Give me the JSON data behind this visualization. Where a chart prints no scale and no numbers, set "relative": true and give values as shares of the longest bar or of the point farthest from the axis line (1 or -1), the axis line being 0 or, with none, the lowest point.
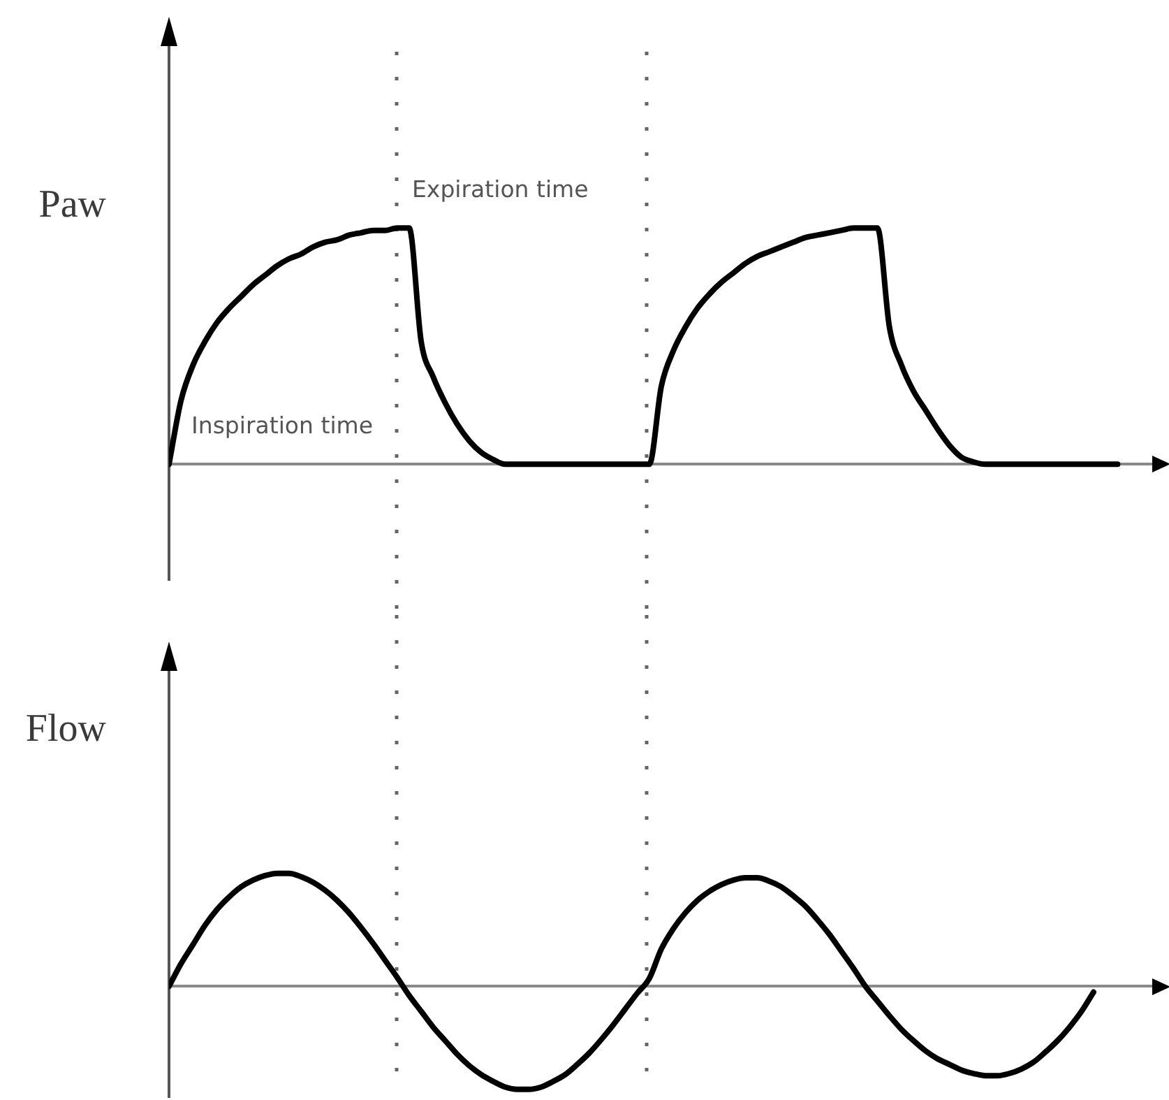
{
  "chart_data": [
    {
      "type": "line",
      "ylabel": "Paw",
      "relative": true,
      "marker": "none",
      "categories": [
        null,
        null,
        null,
        null,
        null,
        null,
        null,
        null,
        null,
        null,
        null,
        null,
        null,
        null,
        null,
        null,
        null,
        null,
        null,
        null,
        null,
        null,
        null,
        null,
        null,
        null,
        null,
        null,
        null,
        null,
        null,
        null,
        null,
        null,
        null,
        null,
        null,
        null,
        null,
        null,
        null,
        null,
        null,
        null,
        null,
        null,
        null,
        null,
        null,
        null,
        null,
        null,
        null,
        null,
        null,
        null,
        null,
        null,
        null,
        null,
        null,
        null,
        null,
        null,
        null,
        null,
        null,
        null,
        null,
        null,
        null,
        null,
        null,
        null,
        null,
        null,
        null,
        null,
        null,
        null
      ],
      "series": [
        {
          "color": "#000000",
          "values": [
            0,
            0.27,
            0.42,
            0.52,
            0.6,
            0.66,
            0.71,
            0.76,
            0.8,
            0.84,
            0.87,
            0.89,
            0.92,
            0.94,
            0.95,
            0.97,
            0.98,
            0.99,
            0.99,
            1,
            1,
            0.52,
            0.37,
            0.26,
            0.17,
            0.1,
            0.05,
            0.02,
            0,
            0,
            0,
            0,
            0,
            0,
            0,
            0,
            0,
            0,
            0,
            0,
            0,
            0.33,
            0.48,
            0.58,
            0.66,
            0.72,
            0.77,
            0.81,
            0.85,
            0.88,
            0.9,
            0.92,
            0.94,
            0.96,
            0.97,
            0.98,
            0.99,
            1,
            1,
            1,
            0.58,
            0.42,
            0.31,
            0.23,
            0.15,
            0.08,
            0.03,
            0.01,
            0,
            0,
            0,
            0,
            0,
            0,
            0,
            0,
            0,
            0,
            0,
            0
          ]
        }
      ],
      "annotations": [
        "Inspiration time",
        "Expiration time"
      ]
    },
    {
      "type": "line",
      "ylabel": "Flow",
      "relative": true,
      "marker": "none",
      "categories": [
        null,
        null,
        null,
        null,
        null,
        null,
        null,
        null,
        null,
        null,
        null,
        null,
        null,
        null,
        null,
        null,
        null,
        null,
        null,
        null,
        null,
        null,
        null,
        null,
        null,
        null,
        null,
        null,
        null,
        null,
        null,
        null,
        null,
        null,
        null,
        null,
        null,
        null,
        null,
        null,
        null,
        null,
        null,
        null,
        null,
        null,
        null,
        null,
        null,
        null,
        null,
        null,
        null,
        null,
        null,
        null,
        null,
        null,
        null,
        null,
        null,
        null,
        null,
        null,
        null,
        null,
        null,
        null,
        null,
        null,
        null,
        null,
        null,
        null,
        null,
        null,
        null,
        null
      ],
      "series": [
        {
          "color": "#000000",
          "values": [
            0,
            0.2,
            0.37,
            0.54,
            0.68,
            0.79,
            0.88,
            0.94,
            0.98,
            1,
            1,
            0.97,
            0.92,
            0.85,
            0.76,
            0.65,
            0.52,
            0.38,
            0.23,
            0.08,
            -0.08,
            -0.22,
            -0.36,
            -0.48,
            -0.6,
            -0.7,
            -0.78,
            -0.84,
            -0.89,
            -0.91,
            -0.91,
            -0.89,
            -0.84,
            -0.78,
            -0.69,
            -0.59,
            -0.47,
            -0.34,
            -0.2,
            -0.06,
            0.07,
            0.33,
            0.51,
            0.65,
            0.76,
            0.84,
            0.9,
            0.94,
            0.96,
            0.96,
            0.93,
            0.88,
            0.8,
            0.71,
            0.59,
            0.46,
            0.31,
            0.16,
            0,
            -0.13,
            -0.26,
            -0.38,
            -0.48,
            -0.57,
            -0.64,
            -0.69,
            -0.74,
            -0.77,
            -0.79,
            -0.79,
            -0.77,
            -0.73,
            -0.67,
            -0.58,
            -0.48,
            -0.36,
            -0.22,
            -0.05
          ]
        }
      ]
    }
  ]
}
